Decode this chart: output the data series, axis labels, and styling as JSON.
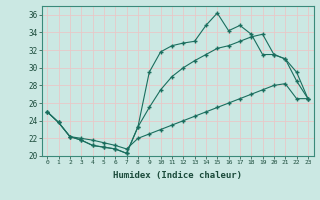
{
  "xlabel": "Humidex (Indice chaleur)",
  "background_color": "#cbe8e3",
  "grid_color": "#e8c8c8",
  "line_color": "#1a6e5e",
  "xlim": [
    -0.5,
    23.5
  ],
  "ylim": [
    20,
    37
  ],
  "xticks": [
    0,
    1,
    2,
    3,
    4,
    5,
    6,
    7,
    8,
    9,
    10,
    11,
    12,
    13,
    14,
    15,
    16,
    17,
    18,
    19,
    20,
    21,
    22,
    23
  ],
  "yticks": [
    20,
    22,
    24,
    26,
    28,
    30,
    32,
    34,
    36
  ],
  "series": [
    {
      "x": [
        0,
        1,
        2,
        3,
        4,
        5,
        6,
        7,
        8,
        9,
        10,
        11,
        12,
        13,
        14,
        15,
        16,
        17,
        18,
        19,
        20,
        21,
        22,
        23
      ],
      "y": [
        25.0,
        23.8,
        22.2,
        21.8,
        21.2,
        21.0,
        20.8,
        20.3,
        23.3,
        29.5,
        31.8,
        32.5,
        32.8,
        33.0,
        34.8,
        36.2,
        34.2,
        34.8,
        33.8,
        31.5,
        31.5,
        31.0,
        28.5,
        26.5
      ]
    },
    {
      "x": [
        0,
        1,
        2,
        3,
        4,
        5,
        6,
        7,
        8,
        9,
        10,
        11,
        12,
        13,
        14,
        15,
        16,
        17,
        18,
        19,
        20,
        21,
        22,
        23
      ],
      "y": [
        25.0,
        23.8,
        22.2,
        21.8,
        21.2,
        21.0,
        20.8,
        20.3,
        23.3,
        25.5,
        27.5,
        29.0,
        30.0,
        30.8,
        31.5,
        32.2,
        32.5,
        33.0,
        33.5,
        33.8,
        31.5,
        31.0,
        29.5,
        26.5
      ]
    },
    {
      "x": [
        0,
        1,
        2,
        3,
        4,
        5,
        6,
        7,
        8,
        9,
        10,
        11,
        12,
        13,
        14,
        15,
        16,
        17,
        18,
        19,
        20,
        21,
        22,
        23
      ],
      "y": [
        25.0,
        23.8,
        22.2,
        22.0,
        21.8,
        21.5,
        21.2,
        20.8,
        22.0,
        22.5,
        23.0,
        23.5,
        24.0,
        24.5,
        25.0,
        25.5,
        26.0,
        26.5,
        27.0,
        27.5,
        28.0,
        28.2,
        26.5,
        26.5
      ]
    }
  ]
}
